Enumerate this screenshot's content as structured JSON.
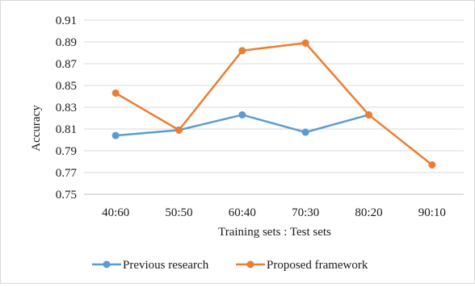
{
  "chart_data": {
    "type": "line",
    "title": "",
    "xlabel": "Training sets : Test sets",
    "ylabel": "Accuracy",
    "categories": [
      "40:60",
      "50:50",
      "60:40",
      "70:30",
      "80:20",
      "90:10"
    ],
    "ylim": [
      0.75,
      0.91
    ],
    "yticks": [
      "0.91",
      "0.89",
      "0.87",
      "0.85",
      "0.83",
      "0.81",
      "0.79",
      "0.77",
      "0.75"
    ],
    "grid": true,
    "legend_position": "bottom",
    "series": [
      {
        "name": "Previous research",
        "color": "#5b9bd5",
        "values": [
          0.804,
          0.809,
          0.823,
          0.807,
          0.823,
          null
        ]
      },
      {
        "name": "Proposed framework",
        "color": "#ed7d31",
        "values": [
          0.843,
          0.809,
          0.882,
          0.889,
          0.823,
          0.777
        ]
      }
    ]
  }
}
